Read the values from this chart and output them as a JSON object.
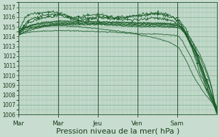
{
  "background_color": "#c8ddd0",
  "plot_bg_color": "#c8ddd0",
  "grid_color": "#7aab8a",
  "line_color": "#1a5c28",
  "line_color2": "#226b2e",
  "ylim": [
    1006,
    1017.5
  ],
  "ytick_min": 1006,
  "ytick_max": 1017,
  "xlabel": "Pression niveau de la mer( hPa )",
  "xlabel_fontsize": 8,
  "day_labels": [
    "Mar",
    "Mar",
    "Jeu",
    "Ven",
    "Sam"
  ],
  "day_positions": [
    0,
    48,
    96,
    144,
    192
  ],
  "total_points": 241
}
